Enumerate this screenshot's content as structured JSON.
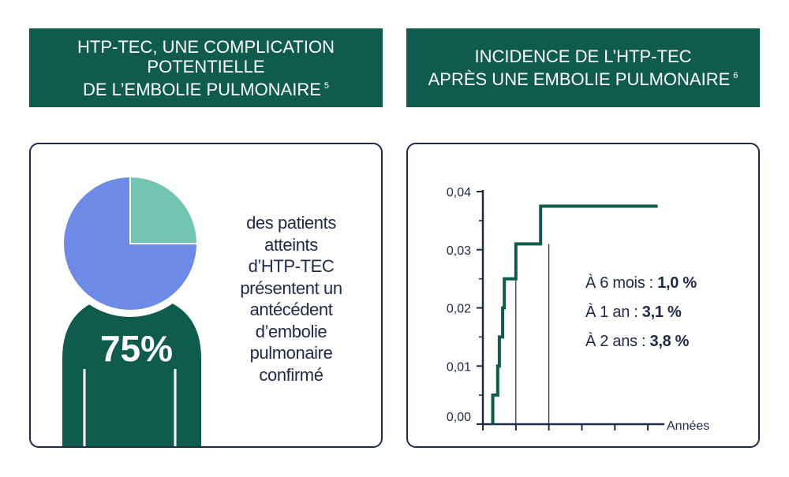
{
  "left": {
    "banner_lines": [
      "HTP-TEC, UNE COMPLICATION",
      "POTENTIELLE",
      "DE L’EMBOLIE PULMONAIRE"
    ],
    "banner_ref": "5",
    "percent_label": "75%",
    "description_lines": [
      "des patients",
      "atteints",
      "d’HTP-TEC",
      "présentent un",
      "antécédent",
      "d’embolie",
      "pulmonaire",
      "confirmé"
    ],
    "colors": {
      "banner": "#0f5c4f",
      "pie_main": "#6c8ae6",
      "pie_rest": "#72c6b1",
      "person": "#0f5c4f",
      "text": "#1e2a48"
    }
  },
  "right": {
    "banner_lines": [
      "INCIDENCE DE L’HTP-TEC",
      "APRÈS UNE EMBOLIE PULMONAIRE"
    ],
    "banner_ref": "6",
    "stats": [
      {
        "label": "À 6 mois : ",
        "value": "1,0 %"
      },
      {
        "label": "À 1 an : ",
        "value": "3,1 %"
      },
      {
        "label": "À 2 ans : ",
        "value": "3,8 %"
      }
    ]
  },
  "chart_data": [
    {
      "type": "pie",
      "categories": [
        "antécédent d’embolie pulmonaire confirmé",
        ""
      ],
      "values": [
        75,
        25
      ],
      "title": "",
      "colors": [
        "#6c8ae6",
        "#72c6b1"
      ]
    },
    {
      "type": "line",
      "step": true,
      "xlabel": "Années",
      "ylabel": "",
      "ylim": [
        0,
        0.04
      ],
      "yticks": [
        0,
        0.01,
        0.02,
        0.03,
        0.04
      ],
      "ytick_labels": [
        "0,00",
        "0,01",
        "0,02",
        "0,03",
        "0,04"
      ],
      "xlim": [
        0,
        5.5
      ],
      "xticks": [
        0,
        1,
        2,
        3,
        4,
        5
      ],
      "x_reference_lines": [
        1,
        2
      ],
      "series": [
        {
          "x": [
            0.3,
            0.45,
            0.5,
            0.6,
            0.65,
            0.75,
            1.0,
            1.75,
            5.3
          ],
          "y": [
            0.005,
            0.01,
            0.015,
            0.02,
            0.025,
            0.025,
            0.031,
            0.0375,
            0.0375
          ],
          "color": "#0f5c4f"
        }
      ],
      "grid": false
    }
  ]
}
